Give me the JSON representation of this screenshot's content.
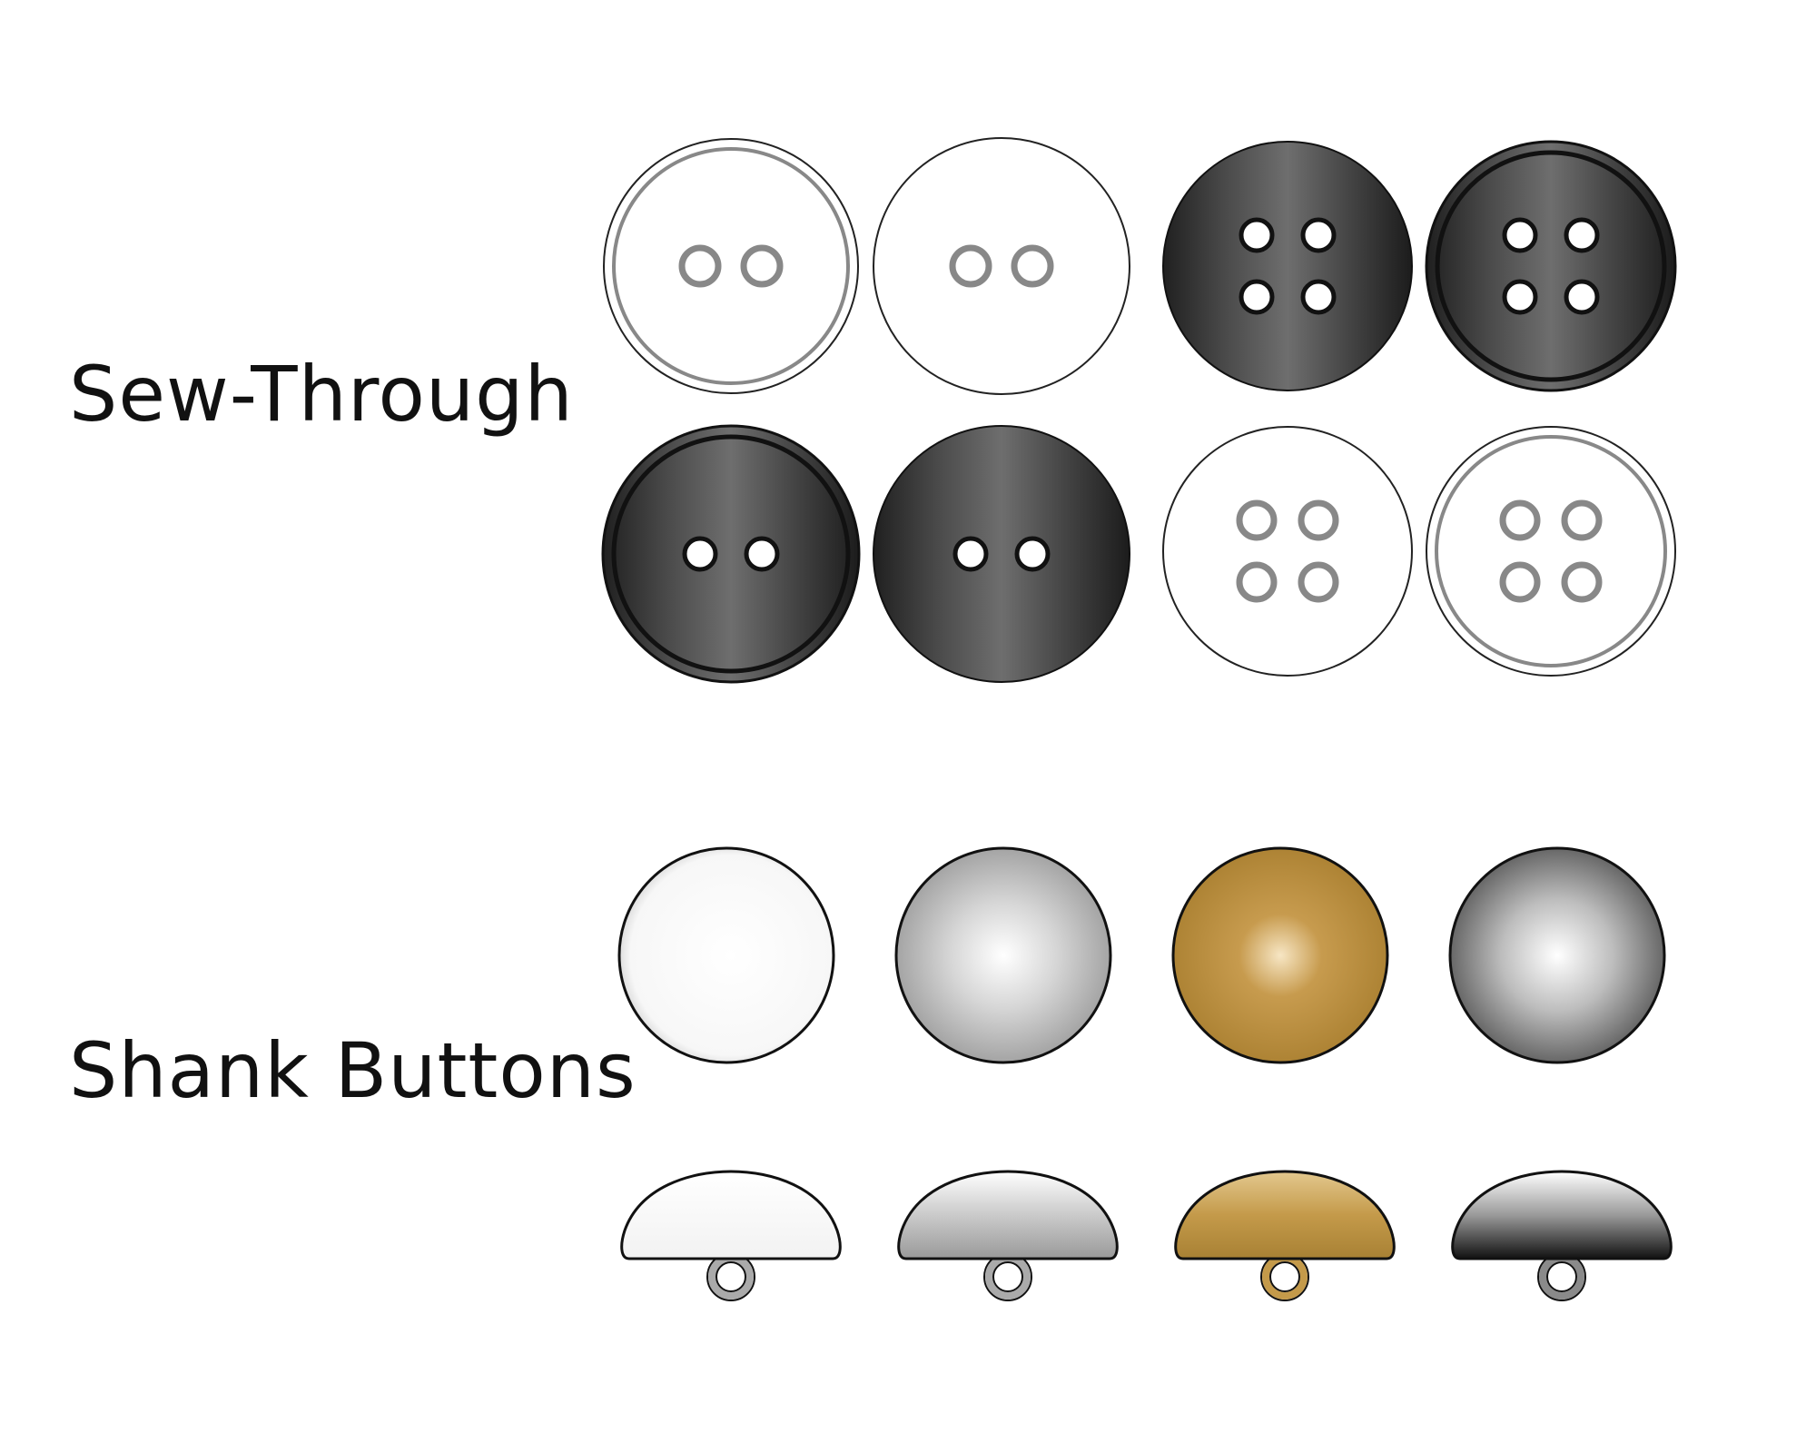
{
  "labels": {
    "sew_through": "Sew-Through",
    "shank_buttons": "Shank Buttons"
  },
  "sew_through_buttons": [
    {
      "holes": 2,
      "finish": "white",
      "rim": "double"
    },
    {
      "holes": 2,
      "finish": "white",
      "rim": "single"
    },
    {
      "holes": 4,
      "finish": "black",
      "rim": "none"
    },
    {
      "holes": 4,
      "finish": "black",
      "rim": "ring"
    },
    {
      "holes": 2,
      "finish": "black",
      "rim": "ring"
    },
    {
      "holes": 2,
      "finish": "black",
      "rim": "none"
    },
    {
      "holes": 4,
      "finish": "white",
      "rim": "single"
    },
    {
      "holes": 4,
      "finish": "white",
      "rim": "double"
    }
  ],
  "shank_buttons": [
    {
      "finish": "white"
    },
    {
      "finish": "silver"
    },
    {
      "finish": "gold"
    },
    {
      "finish": "gunmetal"
    }
  ],
  "colors": {
    "outline": "#111111",
    "white_face": "#ffffff",
    "black_face": "#3a3a3a",
    "silver": "#b5b5b5",
    "gold": "#b48a3c",
    "gunmetal": "#6a6a6a"
  }
}
